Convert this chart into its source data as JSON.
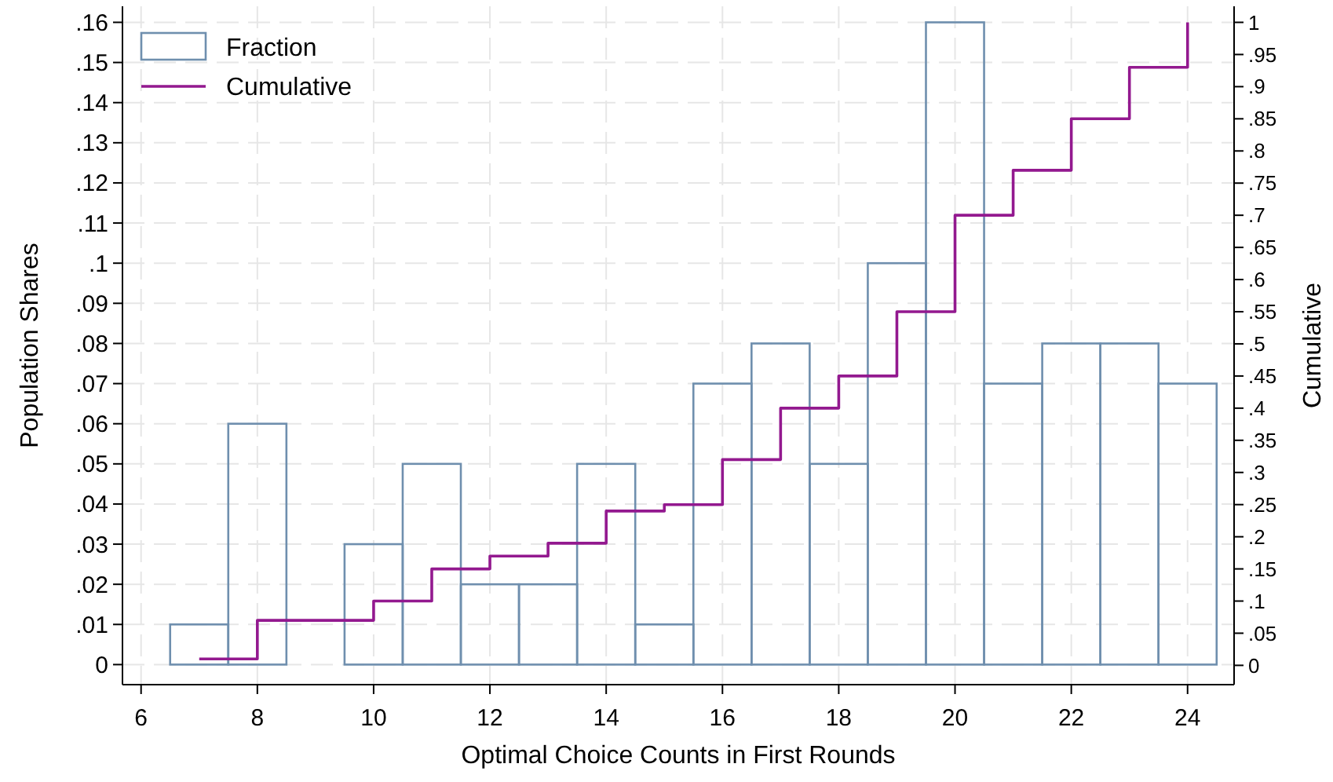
{
  "chart_data": {
    "type": "histogram",
    "xlabel": "Optimal Choice Counts in First Rounds",
    "ylabel": "Population Shares",
    "y2label": "Cumulative",
    "bins": [
      6.5,
      7.5,
      8.5,
      9.5,
      10.5,
      11.5,
      12.5,
      13.5,
      14.5,
      15.5,
      16.5,
      17.5,
      18.5,
      19.5,
      20.5,
      21.5,
      22.5,
      23.5,
      24.5
    ],
    "series": [
      {
        "name": "Fraction",
        "color": "#6f8fae",
        "values": [
          0.01,
          0.06,
          0,
          0.03,
          0.05,
          0.02,
          0.02,
          0.05,
          0.01,
          0.07,
          0.08,
          0.05,
          0.1,
          0.16,
          0.07,
          0.08,
          0.08,
          0.07
        ]
      },
      {
        "name": "Cumulative",
        "type": "step",
        "axis": "y2",
        "color": "#93198f",
        "x": [
          7,
          8,
          10,
          11,
          12,
          13,
          14,
          15,
          16,
          17,
          18,
          19,
          20,
          21,
          22,
          23,
          24
        ],
        "values": [
          0.01,
          0.07,
          0.1,
          0.15,
          0.17,
          0.19,
          0.24,
          0.25,
          0.32,
          0.4,
          0.45,
          0.55,
          0.7,
          0.77,
          0.85,
          0.93,
          1
        ]
      }
    ],
    "xlim": [
      5.68,
      24.8
    ],
    "xticks": [
      6,
      8,
      10,
      12,
      14,
      16,
      18,
      20,
      22,
      24
    ],
    "ylim": [
      -0.005,
      0.164
    ],
    "yticks": [
      0,
      {
        "value": 0.01,
        "label": ".01"
      },
      {
        "value": 0.02,
        "label": ".02"
      },
      {
        "value": 0.03,
        "label": ".03"
      },
      {
        "value": 0.04,
        "label": ".04"
      },
      {
        "value": 0.05,
        "label": ".05"
      },
      {
        "value": 0.06,
        "label": ".06"
      },
      {
        "value": 0.07,
        "label": ".07"
      },
      {
        "value": 0.08,
        "label": ".08"
      },
      {
        "value": 0.09,
        "label": ".09"
      },
      {
        "value": 0.1,
        "label": ".1"
      },
      {
        "value": 0.11,
        "label": ".11"
      },
      {
        "value": 0.12,
        "label": ".12"
      },
      {
        "value": 0.13,
        "label": ".13"
      },
      {
        "value": 0.14,
        "label": ".14"
      },
      {
        "value": 0.15,
        "label": ".15"
      },
      {
        "value": 0.16,
        "label": ".16"
      }
    ],
    "y2lim": [
      -0.03,
      1.025
    ],
    "y2ticks": [
      0,
      {
        "value": 0.05,
        "label": ".05"
      },
      {
        "value": 0.1,
        "label": ".1"
      },
      {
        "value": 0.15,
        "label": ".15"
      },
      {
        "value": 0.2,
        "label": ".2"
      },
      {
        "value": 0.25,
        "label": ".25"
      },
      {
        "value": 0.3,
        "label": ".3"
      },
      {
        "value": 0.35,
        "label": ".35"
      },
      {
        "value": 0.4,
        "label": ".4"
      },
      {
        "value": 0.45,
        "label": ".45"
      },
      {
        "value": 0.5,
        "label": ".5"
      },
      {
        "value": 0.55,
        "label": ".55"
      },
      {
        "value": 0.6,
        "label": ".6"
      },
      {
        "value": 0.65,
        "label": ".65"
      },
      {
        "value": 0.7,
        "label": ".7"
      },
      {
        "value": 0.75,
        "label": ".75"
      },
      {
        "value": 0.8,
        "label": ".8"
      },
      {
        "value": 0.85,
        "label": ".85"
      },
      {
        "value": 0.9,
        "label": ".9"
      },
      {
        "value": 0.95,
        "label": ".95"
      },
      1
    ],
    "grid": true,
    "legend": "top left"
  }
}
